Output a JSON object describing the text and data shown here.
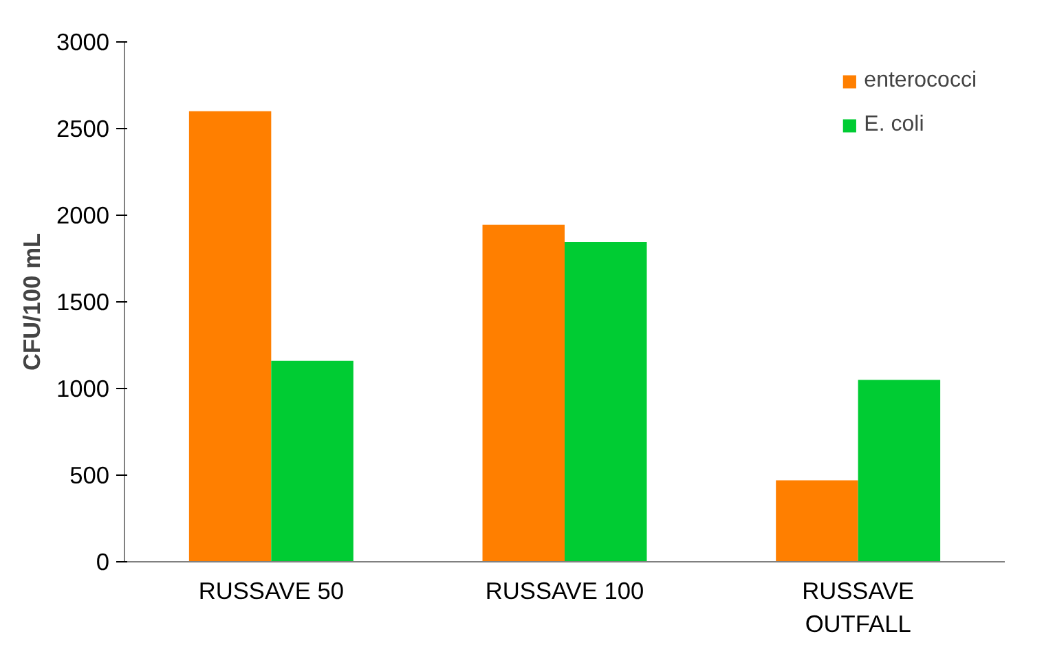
{
  "chart_data": {
    "type": "bar",
    "ylabel": "CFU/100 mL",
    "categories": [
      "RUSSAVE 50",
      "RUSSAVE 100",
      "RUSSAVE OUTFALL"
    ],
    "series": [
      {
        "name": "enterococci",
        "color": "#ff7f00",
        "values": [
          2600,
          1945,
          470
        ]
      },
      {
        "name": "E. coli",
        "color": "#00cc33",
        "values": [
          1160,
          1845,
          1050
        ]
      }
    ],
    "ylim": [
      0,
      3000
    ],
    "yticks": [
      0,
      500,
      1000,
      1500,
      2000,
      2500,
      3000
    ],
    "grid": false,
    "legend": "top right"
  }
}
